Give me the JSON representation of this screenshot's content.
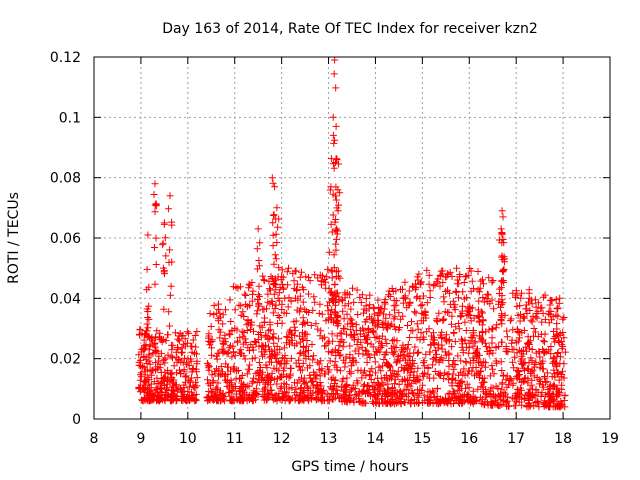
{
  "chart_data": {
    "type": "scatter",
    "title": "Day 163 of 2014, Rate Of TEC Index for receiver kzn2",
    "xlabel": "GPS time / hours",
    "ylabel": "ROTI / TECUs",
    "xlim": [
      8,
      19
    ],
    "ylim": [
      0,
      0.12
    ],
    "xticks": [
      "8",
      "9",
      "10",
      "11",
      "12",
      "13",
      "14",
      "15",
      "16",
      "17",
      "18",
      "19"
    ],
    "yticks": [
      "0",
      "0.02",
      "0.04",
      "0.06",
      "0.08",
      "0.1",
      "0.12"
    ],
    "grid": true,
    "marker": "+",
    "series_color": "#ff0000",
    "data_span": [
      8.95,
      18.05
    ],
    "gap": [
      10.2,
      10.4
    ],
    "baseline_envelope": [
      {
        "x": 9.0,
        "low": 0.006,
        "high": 0.03
      },
      {
        "x": 10.0,
        "low": 0.006,
        "high": 0.029
      },
      {
        "x": 11.0,
        "low": 0.006,
        "high": 0.045
      },
      {
        "x": 12.0,
        "low": 0.006,
        "high": 0.05
      },
      {
        "x": 13.0,
        "low": 0.006,
        "high": 0.05
      },
      {
        "x": 14.0,
        "low": 0.005,
        "high": 0.04
      },
      {
        "x": 15.0,
        "low": 0.005,
        "high": 0.05
      },
      {
        "x": 16.0,
        "low": 0.005,
        "high": 0.05
      },
      {
        "x": 17.0,
        "low": 0.004,
        "high": 0.045
      },
      {
        "x": 18.0,
        "low": 0.004,
        "high": 0.04
      }
    ],
    "peaks": [
      {
        "x": 9.15,
        "y": 0.061
      },
      {
        "x": 9.3,
        "y": 0.078
      },
      {
        "x": 9.5,
        "y": 0.065
      },
      {
        "x": 9.62,
        "y": 0.074
      },
      {
        "x": 11.5,
        "y": 0.063
      },
      {
        "x": 11.8,
        "y": 0.08
      },
      {
        "x": 11.85,
        "y": 0.077
      },
      {
        "x": 11.9,
        "y": 0.07
      },
      {
        "x": 13.05,
        "y": 0.077
      },
      {
        "x": 13.1,
        "y": 0.1
      },
      {
        "x": 13.13,
        "y": 0.119
      },
      {
        "x": 13.16,
        "y": 0.097
      },
      {
        "x": 13.18,
        "y": 0.086
      },
      {
        "x": 13.2,
        "y": 0.076
      },
      {
        "x": 16.7,
        "y": 0.069
      },
      {
        "x": 16.72,
        "y": 0.067
      },
      {
        "x": 16.68,
        "y": 0.063
      }
    ]
  }
}
